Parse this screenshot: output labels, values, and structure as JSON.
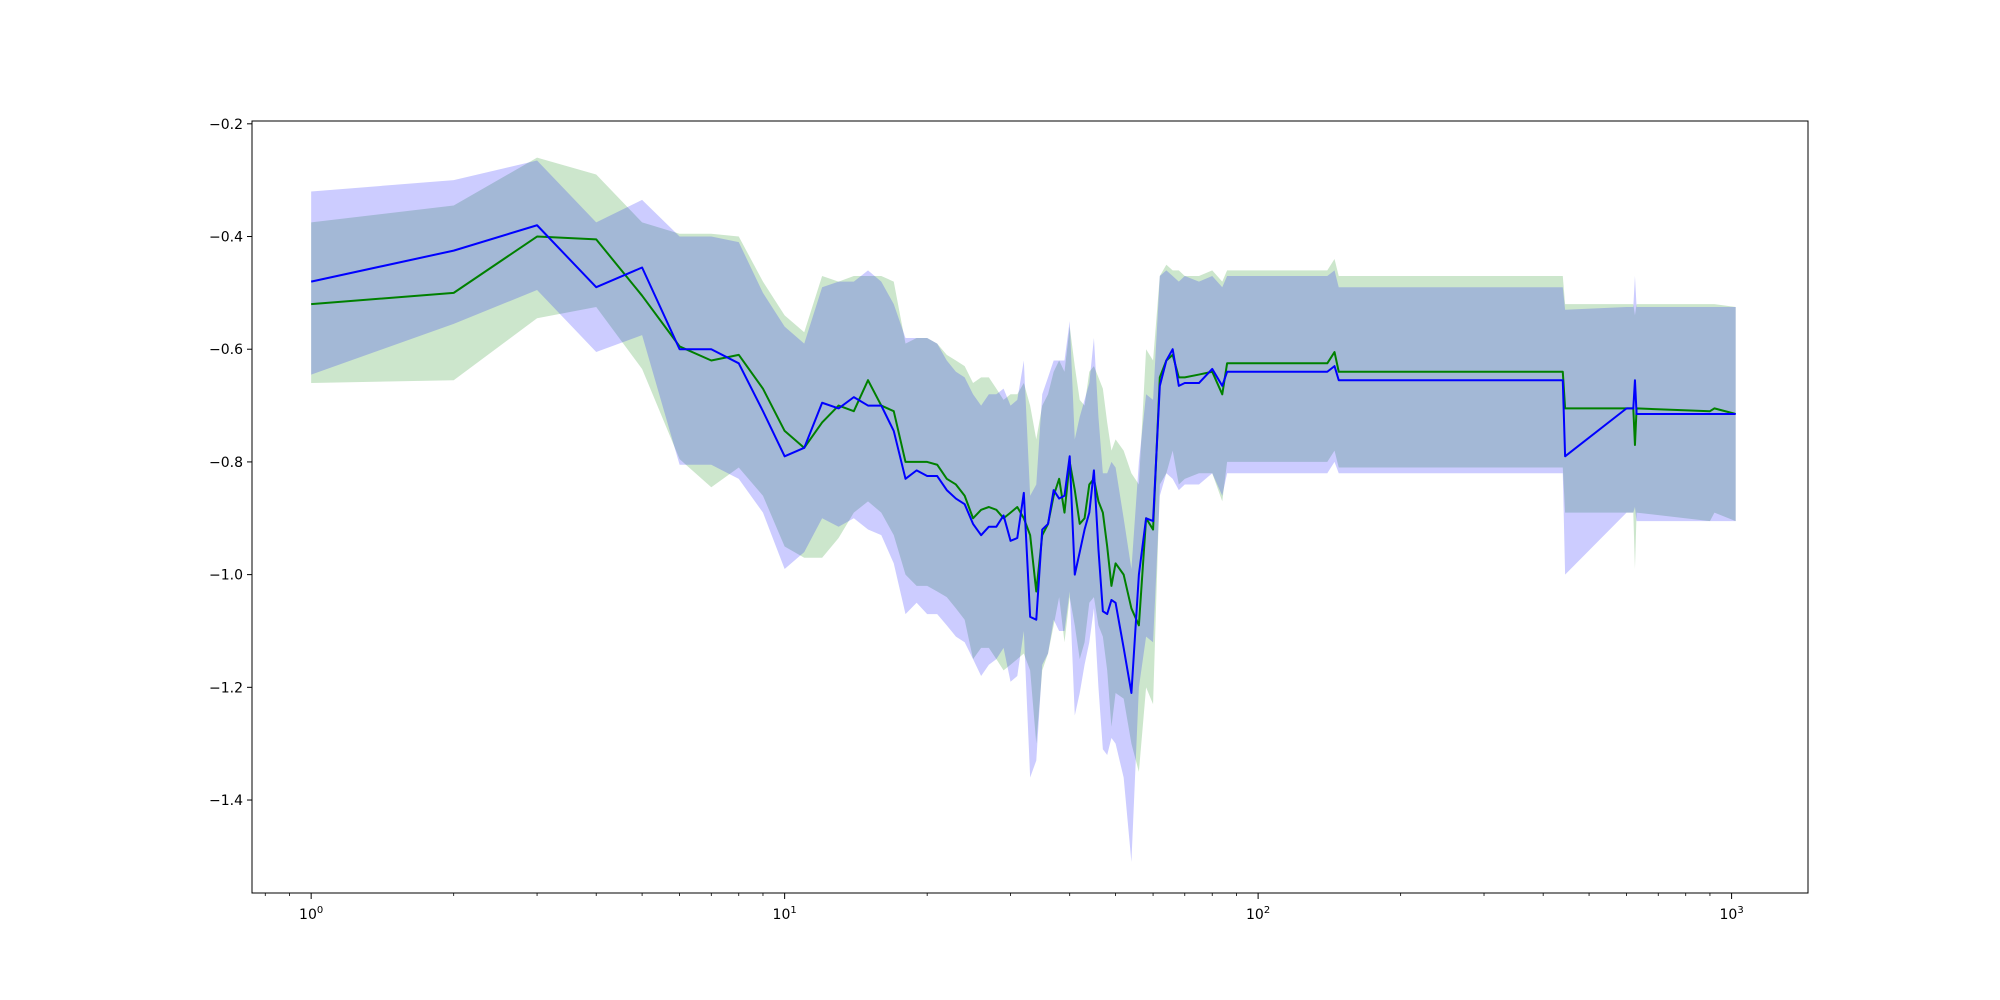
{
  "chart_data": {
    "type": "line",
    "title": "",
    "xlabel": "",
    "ylabel": "",
    "x_scale": "log",
    "xlim": [
      0.75,
      1450
    ],
    "ylim": [
      -1.565,
      -0.195
    ],
    "grid": false,
    "legend": "none",
    "y_ticks": [
      -0.2,
      -0.4,
      -0.6,
      -0.8,
      -1.0,
      -1.2,
      -1.4
    ],
    "y_tick_labels": [
      "−0.2",
      "−0.4",
      "−0.6",
      "−0.8",
      "−1.0",
      "−1.2",
      "−1.4"
    ],
    "x_ticks": [
      1,
      10,
      100,
      1000
    ],
    "x_tick_labels": [
      {
        "base": "10",
        "exp": "0"
      },
      {
        "base": "10",
        "exp": "1"
      },
      {
        "base": "10",
        "exp": "2"
      },
      {
        "base": "10",
        "exp": "3"
      }
    ],
    "series": [
      {
        "color": "#008000",
        "band_color": "#008000",
        "band_opacity": 0.2,
        "x": [
          1,
          2,
          3,
          4,
          5,
          6,
          7,
          8,
          9,
          10,
          11,
          12,
          13,
          14,
          15,
          16,
          17,
          18,
          19,
          20,
          21,
          22,
          23,
          24,
          25,
          26,
          27,
          28,
          29,
          30,
          31,
          32,
          33,
          34,
          35,
          36,
          37,
          38,
          39,
          40,
          41,
          42,
          43,
          44,
          45,
          46,
          47,
          48,
          49,
          50,
          52,
          54,
          56,
          58,
          60,
          62,
          64,
          66,
          68,
          70,
          75,
          80,
          84,
          86,
          100,
          140,
          145,
          148,
          440,
          445,
          600,
          620,
          625,
          630,
          900,
          920,
          1020
        ],
        "y": [
          -0.52,
          -0.5,
          -0.4,
          -0.405,
          -0.505,
          -0.595,
          -0.62,
          -0.61,
          -0.67,
          -0.745,
          -0.775,
          -0.73,
          -0.7,
          -0.71,
          -0.655,
          -0.7,
          -0.71,
          -0.8,
          -0.8,
          -0.8,
          -0.805,
          -0.83,
          -0.84,
          -0.86,
          -0.9,
          -0.885,
          -0.88,
          -0.885,
          -0.9,
          -0.89,
          -0.88,
          -0.9,
          -0.93,
          -1.03,
          -0.93,
          -0.91,
          -0.86,
          -0.83,
          -0.89,
          -0.8,
          -0.85,
          -0.91,
          -0.9,
          -0.84,
          -0.83,
          -0.87,
          -0.89,
          -0.95,
          -1.02,
          -0.98,
          -1.0,
          -1.06,
          -1.09,
          -0.9,
          -0.92,
          -0.65,
          -0.62,
          -0.61,
          -0.65,
          -0.65,
          -0.645,
          -0.64,
          -0.68,
          -0.625,
          -0.625,
          -0.625,
          -0.605,
          -0.64,
          -0.64,
          -0.705,
          -0.705,
          -0.705,
          -0.77,
          -0.705,
          -0.71,
          -0.705,
          -0.715
        ],
        "upper": [
          -0.375,
          -0.345,
          -0.26,
          -0.29,
          -0.375,
          -0.395,
          -0.395,
          -0.4,
          -0.48,
          -0.54,
          -0.57,
          -0.47,
          -0.48,
          -0.47,
          -0.47,
          -0.47,
          -0.48,
          -0.59,
          -0.58,
          -0.58,
          -0.59,
          -0.61,
          -0.62,
          -0.63,
          -0.66,
          -0.65,
          -0.65,
          -0.67,
          -0.69,
          -0.68,
          -0.68,
          -0.66,
          -0.7,
          -0.76,
          -0.7,
          -0.68,
          -0.64,
          -0.62,
          -0.64,
          -0.56,
          -0.63,
          -0.69,
          -0.7,
          -0.64,
          -0.63,
          -0.65,
          -0.67,
          -0.73,
          -0.78,
          -0.76,
          -0.78,
          -0.82,
          -0.84,
          -0.6,
          -0.62,
          -0.47,
          -0.45,
          -0.46,
          -0.46,
          -0.47,
          -0.47,
          -0.46,
          -0.48,
          -0.46,
          -0.46,
          -0.46,
          -0.44,
          -0.47,
          -0.47,
          -0.52,
          -0.52,
          -0.52,
          -0.54,
          -0.52,
          -0.52,
          -0.52,
          -0.525
        ],
        "lower": [
          -0.66,
          -0.655,
          -0.545,
          -0.525,
          -0.635,
          -0.795,
          -0.845,
          -0.81,
          -0.86,
          -0.95,
          -0.97,
          -0.97,
          -0.935,
          -0.89,
          -0.87,
          -0.89,
          -0.93,
          -1.0,
          -1.02,
          -1.02,
          -1.03,
          -1.04,
          -1.06,
          -1.08,
          -1.15,
          -1.13,
          -1.13,
          -1.15,
          -1.17,
          -1.16,
          -1.15,
          -1.14,
          -1.17,
          -1.3,
          -1.17,
          -1.14,
          -1.09,
          -1.04,
          -1.12,
          -1.04,
          -1.09,
          -1.15,
          -1.12,
          -1.05,
          -1.04,
          -1.09,
          -1.11,
          -1.17,
          -1.27,
          -1.21,
          -1.22,
          -1.3,
          -1.35,
          -1.2,
          -1.23,
          -0.84,
          -0.82,
          -0.78,
          -0.84,
          -0.83,
          -0.82,
          -0.82,
          -0.87,
          -0.8,
          -0.8,
          -0.8,
          -0.78,
          -0.81,
          -0.81,
          -0.89,
          -0.89,
          -0.89,
          -0.99,
          -0.89,
          -0.905,
          -0.89,
          -0.905
        ]
      },
      {
        "color": "#0000ff",
        "band_color": "#0000ff",
        "band_opacity": 0.2,
        "x": [
          1,
          2,
          3,
          4,
          5,
          6,
          7,
          8,
          9,
          10,
          11,
          12,
          13,
          14,
          15,
          16,
          17,
          18,
          19,
          20,
          21,
          22,
          23,
          24,
          25,
          26,
          27,
          28,
          29,
          30,
          31,
          32,
          33,
          34,
          35,
          36,
          37,
          38,
          39,
          40,
          41,
          42,
          43,
          44,
          45,
          46,
          47,
          48,
          49,
          50,
          52,
          54,
          56,
          58,
          60,
          62,
          64,
          66,
          68,
          70,
          75,
          80,
          84,
          86,
          100,
          140,
          145,
          148,
          440,
          445,
          600,
          620,
          625,
          630,
          900,
          920,
          1020
        ],
        "y": [
          -0.48,
          -0.425,
          -0.38,
          -0.49,
          -0.455,
          -0.6,
          -0.6,
          -0.625,
          -0.71,
          -0.79,
          -0.775,
          -0.695,
          -0.705,
          -0.685,
          -0.7,
          -0.7,
          -0.745,
          -0.83,
          -0.815,
          -0.825,
          -0.825,
          -0.85,
          -0.865,
          -0.875,
          -0.91,
          -0.93,
          -0.915,
          -0.915,
          -0.895,
          -0.94,
          -0.935,
          -0.855,
          -1.075,
          -1.08,
          -0.92,
          -0.91,
          -0.85,
          -0.865,
          -0.86,
          -0.79,
          -1.0,
          -0.96,
          -0.92,
          -0.89,
          -0.815,
          -0.955,
          -1.065,
          -1.07,
          -1.045,
          -1.05,
          -1.13,
          -1.21,
          -1.0,
          -0.9,
          -0.905,
          -0.665,
          -0.62,
          -0.6,
          -0.665,
          -0.66,
          -0.66,
          -0.635,
          -0.665,
          -0.64,
          -0.64,
          -0.64,
          -0.63,
          -0.655,
          -0.655,
          -0.79,
          -0.705,
          -0.705,
          -0.655,
          -0.715,
          -0.715,
          -0.715,
          -0.715
        ],
        "upper": [
          -0.32,
          -0.3,
          -0.265,
          -0.375,
          -0.335,
          -0.4,
          -0.4,
          -0.41,
          -0.5,
          -0.56,
          -0.59,
          -0.49,
          -0.48,
          -0.48,
          -0.46,
          -0.48,
          -0.52,
          -0.58,
          -0.58,
          -0.58,
          -0.59,
          -0.62,
          -0.64,
          -0.65,
          -0.68,
          -0.7,
          -0.68,
          -0.68,
          -0.67,
          -0.7,
          -0.69,
          -0.62,
          -0.86,
          -0.84,
          -0.68,
          -0.65,
          -0.62,
          -0.62,
          -0.62,
          -0.55,
          -0.76,
          -0.72,
          -0.69,
          -0.66,
          -0.58,
          -0.72,
          -0.82,
          -0.82,
          -0.8,
          -0.81,
          -0.9,
          -0.99,
          -0.8,
          -0.68,
          -0.69,
          -0.47,
          -0.46,
          -0.47,
          -0.48,
          -0.47,
          -0.48,
          -0.47,
          -0.49,
          -0.47,
          -0.47,
          -0.47,
          -0.46,
          -0.49,
          -0.49,
          -0.53,
          -0.525,
          -0.525,
          -0.47,
          -0.525,
          -0.525,
          -0.525,
          -0.525
        ],
        "lower": [
          -0.645,
          -0.555,
          -0.495,
          -0.605,
          -0.575,
          -0.805,
          -0.805,
          -0.83,
          -0.89,
          -0.99,
          -0.96,
          -0.9,
          -0.915,
          -0.9,
          -0.92,
          -0.93,
          -0.98,
          -1.07,
          -1.05,
          -1.07,
          -1.07,
          -1.09,
          -1.11,
          -1.12,
          -1.15,
          -1.18,
          -1.16,
          -1.15,
          -1.13,
          -1.19,
          -1.18,
          -1.1,
          -1.36,
          -1.33,
          -1.16,
          -1.14,
          -1.08,
          -1.1,
          -1.1,
          -1.03,
          -1.25,
          -1.21,
          -1.16,
          -1.12,
          -1.06,
          -1.2,
          -1.31,
          -1.32,
          -1.29,
          -1.3,
          -1.36,
          -1.51,
          -1.2,
          -1.11,
          -1.12,
          -0.86,
          -0.82,
          -0.83,
          -0.85,
          -0.84,
          -0.84,
          -0.82,
          -0.86,
          -0.82,
          -0.82,
          -0.82,
          -0.8,
          -0.82,
          -0.82,
          -1.0,
          -0.89,
          -0.89,
          -0.88,
          -0.905,
          -0.905,
          -0.905,
          -0.905
        ]
      }
    ]
  }
}
